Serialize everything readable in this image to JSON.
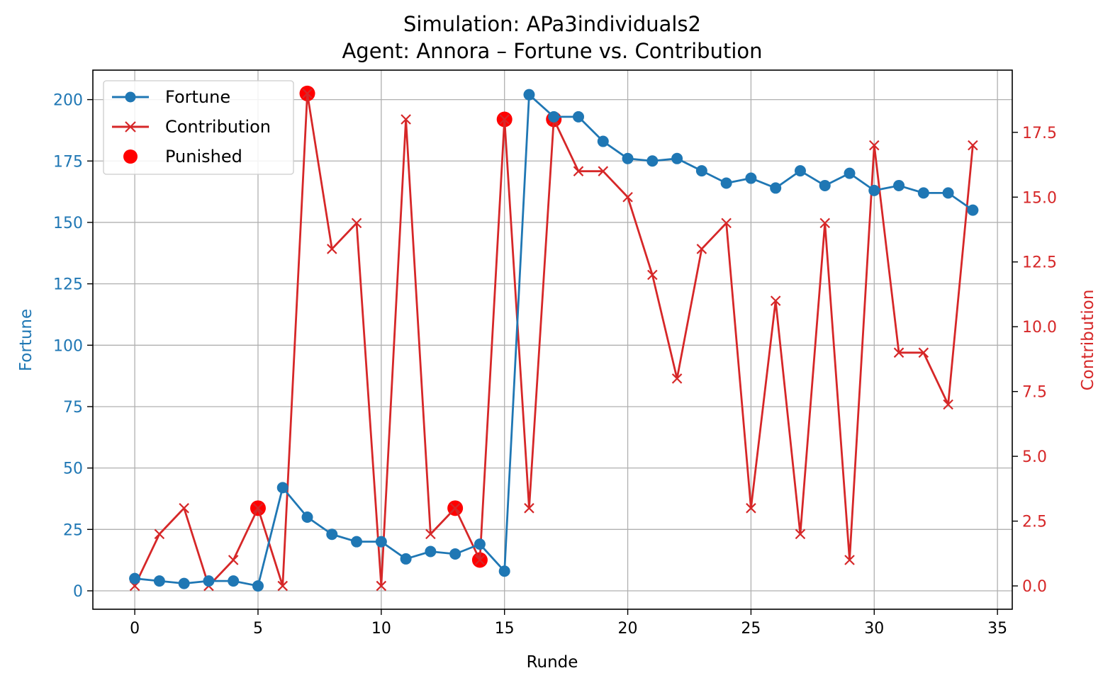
{
  "chart_data": {
    "type": "line",
    "title": "Simulation: APa3individuals2",
    "subtitle": "Agent: Annora – Fortune vs. Contribution",
    "xlabel": "Runde",
    "ylabel_left": "Fortune",
    "ylabel_right": "Contribution",
    "xlim": [
      -1.7,
      35.6
    ],
    "ylim_left": [
      -7.5,
      212
    ],
    "ylim_right": [
      -0.9,
      19.9
    ],
    "x_ticks": [
      0,
      5,
      10,
      15,
      20,
      25,
      30,
      35
    ],
    "y_left_ticks": [
      0,
      25,
      50,
      75,
      100,
      125,
      150,
      175,
      200
    ],
    "y_right_ticks": [
      "0.0",
      "2.5",
      "5.0",
      "7.5",
      "10.0",
      "12.5",
      "15.0",
      "17.5"
    ],
    "grid": true,
    "legend_position": "top-left",
    "x": [
      0,
      1,
      2,
      3,
      4,
      5,
      6,
      7,
      8,
      9,
      10,
      11,
      12,
      13,
      14,
      15,
      16,
      17,
      18,
      19,
      20,
      21,
      22,
      23,
      24,
      25,
      26,
      27,
      28,
      29,
      30,
      31,
      32,
      33,
      34
    ],
    "series": [
      {
        "name": "Fortune",
        "axis": "left",
        "color": "#1f77b4",
        "marker": "circle",
        "values": [
          5,
          4,
          3,
          4,
          4,
          2,
          42,
          30,
          23,
          20,
          20,
          13,
          16,
          15,
          19,
          8,
          202,
          193,
          193,
          183,
          176,
          175,
          176,
          171,
          166,
          168,
          164,
          171,
          165,
          170,
          163,
          165,
          162,
          162,
          155
        ]
      },
      {
        "name": "Contribution",
        "axis": "right",
        "color": "#d62728",
        "marker": "x",
        "values": [
          0,
          2,
          3,
          0,
          1,
          3,
          0,
          19,
          13,
          14,
          0,
          18,
          2,
          3,
          1,
          18,
          3,
          18,
          16,
          16,
          15,
          12,
          8,
          13,
          14,
          3,
          11,
          2,
          14,
          1,
          17,
          9,
          9,
          7,
          17
        ]
      }
    ],
    "punished": {
      "name": "Punished",
      "axis": "right",
      "color": "#ff0000",
      "x": [
        5,
        7,
        13,
        14,
        15,
        17
      ],
      "values": [
        3,
        19,
        3,
        1,
        18,
        18
      ]
    },
    "colors": {
      "left_axis": "#1f77b4",
      "right_axis": "#d62728",
      "punished": "#ff0000"
    }
  }
}
